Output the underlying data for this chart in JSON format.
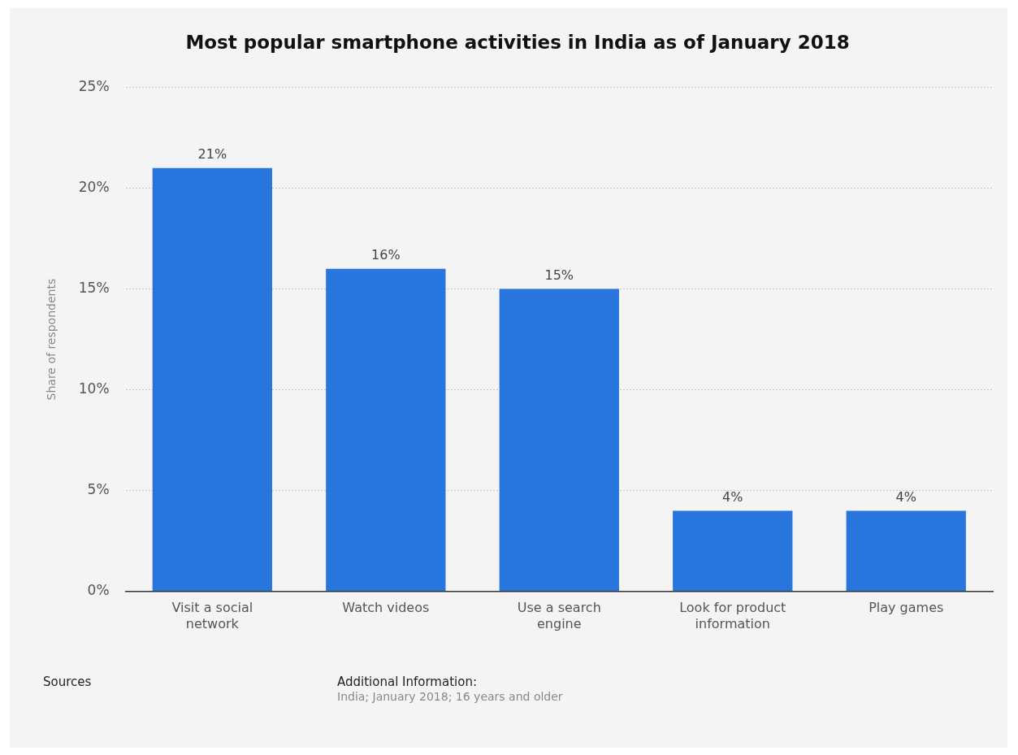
{
  "chart_data": {
    "type": "bar",
    "title": "Most popular smartphone activities in India as of January 2018",
    "ylabel": "Share of respondents",
    "categories": [
      "Visit a social network",
      "Watch videos",
      "Use a search engine",
      "Look for product information",
      "Play games"
    ],
    "values": [
      21,
      16,
      15,
      4,
      4
    ],
    "color": "#2875de",
    "ylim": [
      0,
      25
    ],
    "yticks": [
      {
        "value": 0,
        "label": "0%"
      },
      {
        "value": 5,
        "label": "5%"
      },
      {
        "value": 10,
        "label": "10%"
      },
      {
        "value": 15,
        "label": "15%"
      },
      {
        "value": 20,
        "label": "20%"
      },
      {
        "value": 25,
        "label": "25%"
      }
    ],
    "grid": "y",
    "legend": false,
    "value_labels": [
      "21%",
      "16%",
      "15%",
      "4%",
      "4%"
    ],
    "annotations": [
      "Sources",
      "Additional Information:",
      "India; January 2018; 16 years and older"
    ]
  }
}
